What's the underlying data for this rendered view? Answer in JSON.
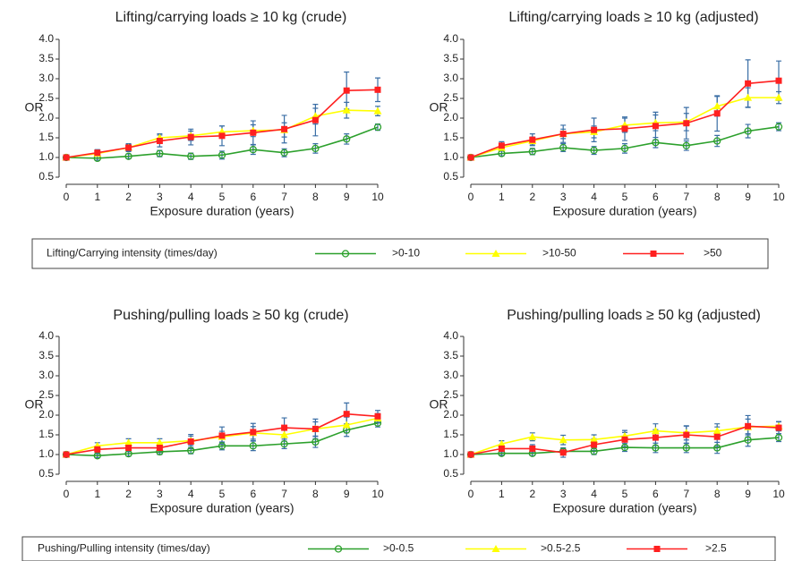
{
  "chart_data": [
    {
      "type": "line",
      "title": "Lifting/carrying loads ≥ 10 kg (crude)",
      "ylabel": "OR",
      "xlabel": "Exposure duration (years)",
      "legend_title": "Lifting/Carrying intensity (times/day)",
      "x": [
        0,
        1,
        2,
        3,
        4,
        5,
        6,
        7,
        8,
        9,
        10
      ],
      "xlim": [
        0,
        10
      ],
      "xticks": [
        0,
        1,
        2,
        3,
        4,
        5,
        6,
        7,
        8,
        9,
        10
      ],
      "ylim": [
        0.5,
        4.0
      ],
      "yticks": [
        {
          "value": 0.5,
          "label": "0.5"
        },
        {
          "value": 1,
          "label": "1.0"
        },
        {
          "value": 1.5,
          "label": "1.5"
        },
        {
          "value": 2,
          "label": "2.0"
        },
        {
          "value": 2.5,
          "label": "2.5"
        },
        {
          "value": 3,
          "label": "3.0"
        },
        {
          "value": 3.5,
          "label": "3.5"
        },
        {
          "value": 4,
          "label": "4.0"
        }
      ],
      "series": [
        {
          "name": ">0-10",
          "color": "#2ca02c",
          "marker": "circle",
          "values": [
            1.0,
            0.98,
            1.03,
            1.1,
            1.03,
            1.06,
            1.2,
            1.12,
            1.23,
            1.47,
            1.77
          ],
          "errors": [
            0,
            0.05,
            0.06,
            0.08,
            0.08,
            0.1,
            0.12,
            0.1,
            0.12,
            0.13,
            0.08
          ]
        },
        {
          "name": ">10-50",
          "color": "#ffff00",
          "marker": "triangle",
          "values": [
            1.0,
            1.1,
            1.25,
            1.5,
            1.55,
            1.65,
            1.68,
            1.7,
            2.05,
            2.2,
            2.18
          ],
          "errors": [
            0,
            0.06,
            0.08,
            0.1,
            0.12,
            0.15,
            0.15,
            0.18,
            0.2,
            0.2,
            0.12
          ]
        },
        {
          "name": ">50",
          "color": "#ff2020",
          "marker": "square",
          "values": [
            1.0,
            1.12,
            1.25,
            1.42,
            1.52,
            1.55,
            1.63,
            1.72,
            1.95,
            2.7,
            2.72
          ],
          "errors": [
            0,
            0.08,
            0.1,
            0.15,
            0.2,
            0.25,
            0.3,
            0.35,
            0.4,
            0.47,
            0.3
          ]
        }
      ]
    },
    {
      "type": "line",
      "title": "Lifting/carrying loads ≥ 10 kg (adjusted)",
      "ylabel": "OR",
      "xlabel": "Exposure duration (years)",
      "x": [
        0,
        1,
        2,
        3,
        4,
        5,
        6,
        7,
        8,
        9,
        10
      ],
      "xlim": [
        0,
        10
      ],
      "xticks": [
        0,
        1,
        2,
        3,
        4,
        5,
        6,
        7,
        8,
        9,
        10
      ],
      "ylim": [
        0.5,
        4.0
      ],
      "yticks": [
        {
          "value": 0.5,
          "label": "0.5"
        },
        {
          "value": 1,
          "label": "1.0"
        },
        {
          "value": 1.5,
          "label": "1.5"
        },
        {
          "value": 2,
          "label": "2.0"
        },
        {
          "value": 2.5,
          "label": "2.5"
        },
        {
          "value": 3,
          "label": "3.0"
        },
        {
          "value": 3.5,
          "label": "3.5"
        },
        {
          "value": 4,
          "label": "4.0"
        }
      ],
      "series": [
        {
          "color": "#2ca02c",
          "marker": "circle",
          "values": [
            1.0,
            1.1,
            1.15,
            1.25,
            1.18,
            1.23,
            1.38,
            1.3,
            1.42,
            1.67,
            1.78
          ],
          "errors": [
            0,
            0.06,
            0.08,
            0.1,
            0.1,
            0.12,
            0.13,
            0.12,
            0.14,
            0.17,
            0.1
          ]
        },
        {
          "color": "#ffff00",
          "marker": "triangle",
          "values": [
            1.0,
            1.25,
            1.42,
            1.6,
            1.65,
            1.82,
            1.88,
            1.9,
            2.3,
            2.52,
            2.52
          ],
          "errors": [
            0,
            0.08,
            0.1,
            0.12,
            0.15,
            0.18,
            0.2,
            0.22,
            0.25,
            0.25,
            0.15
          ]
        },
        {
          "color": "#ff2020",
          "marker": "square",
          "values": [
            1.0,
            1.3,
            1.45,
            1.6,
            1.7,
            1.73,
            1.8,
            1.87,
            2.12,
            2.88,
            2.95
          ],
          "errors": [
            0,
            0.1,
            0.15,
            0.22,
            0.3,
            0.3,
            0.35,
            0.4,
            0.45,
            0.6,
            0.5
          ]
        }
      ]
    },
    {
      "type": "line",
      "title": "Pushing/pulling loads ≥ 50 kg (crude)",
      "ylabel": "OR",
      "xlabel": "Exposure duration (years)",
      "legend_title": "Pushing/Pulling intensity (times/day)",
      "x": [
        0,
        1,
        2,
        3,
        4,
        5,
        6,
        7,
        8,
        9,
        10
      ],
      "xlim": [
        0,
        10
      ],
      "xticks": [
        0,
        1,
        2,
        3,
        4,
        5,
        6,
        7,
        8,
        9,
        10
      ],
      "ylim": [
        0.5,
        4.0
      ],
      "yticks": [
        {
          "value": 0.5,
          "label": "0.5"
        },
        {
          "value": 1,
          "label": "1.0"
        },
        {
          "value": 1.5,
          "label": "1.5"
        },
        {
          "value": 2,
          "label": "2.0"
        },
        {
          "value": 2.5,
          "label": "2.5"
        },
        {
          "value": 3,
          "label": "3.0"
        },
        {
          "value": 3.5,
          "label": "3.5"
        },
        {
          "value": 4,
          "label": "4.0"
        }
      ],
      "series": [
        {
          "name": ">0-0.5",
          "color": "#2ca02c",
          "marker": "circle",
          "values": [
            1.0,
            0.97,
            1.02,
            1.07,
            1.1,
            1.22,
            1.22,
            1.27,
            1.32,
            1.62,
            1.8
          ],
          "errors": [
            0,
            0.05,
            0.06,
            0.07,
            0.08,
            0.1,
            0.12,
            0.12,
            0.14,
            0.16,
            0.1
          ]
        },
        {
          "name": ">0.5-2.5",
          "color": "#ffff00",
          "marker": "triangle",
          "values": [
            1.0,
            1.22,
            1.3,
            1.3,
            1.35,
            1.45,
            1.55,
            1.5,
            1.65,
            1.75,
            1.92
          ],
          "errors": [
            0,
            0.08,
            0.1,
            0.1,
            0.12,
            0.14,
            0.16,
            0.16,
            0.18,
            0.2,
            0.12
          ]
        },
        {
          "name": ">2.5",
          "color": "#ff2020",
          "marker": "square",
          "values": [
            1.0,
            1.13,
            1.17,
            1.17,
            1.33,
            1.48,
            1.57,
            1.68,
            1.65,
            2.03,
            1.97
          ],
          "errors": [
            0,
            0.08,
            0.1,
            0.12,
            0.18,
            0.22,
            0.22,
            0.25,
            0.25,
            0.28,
            0.15
          ]
        }
      ]
    },
    {
      "type": "line",
      "title": "Pushing/pulling loads ≥ 50 kg (adjusted)",
      "ylabel": "OR",
      "xlabel": "Exposure duration (years)",
      "x": [
        0,
        1,
        2,
        3,
        4,
        5,
        6,
        7,
        8,
        9,
        10
      ],
      "xlim": [
        0,
        10
      ],
      "xticks": [
        0,
        1,
        2,
        3,
        4,
        5,
        6,
        7,
        8,
        9,
        10
      ],
      "ylim": [
        0.5,
        4.0
      ],
      "yticks": [
        {
          "value": 0.5,
          "label": "0.5"
        },
        {
          "value": 1,
          "label": "1.0"
        },
        {
          "value": 1.5,
          "label": "1.5"
        },
        {
          "value": 2,
          "label": "2.0"
        },
        {
          "value": 2.5,
          "label": "2.5"
        },
        {
          "value": 3,
          "label": "3.0"
        },
        {
          "value": 3.5,
          "label": "3.5"
        },
        {
          "value": 4,
          "label": "4.0"
        }
      ],
      "series": [
        {
          "color": "#2ca02c",
          "marker": "circle",
          "values": [
            1.0,
            1.03,
            1.03,
            1.08,
            1.08,
            1.18,
            1.17,
            1.17,
            1.17,
            1.37,
            1.43
          ],
          "errors": [
            0,
            0.05,
            0.06,
            0.07,
            0.08,
            0.1,
            0.12,
            0.12,
            0.14,
            0.16,
            0.1
          ]
        },
        {
          "color": "#ffff00",
          "marker": "triangle",
          "values": [
            1.0,
            1.27,
            1.45,
            1.37,
            1.38,
            1.47,
            1.6,
            1.55,
            1.6,
            1.7,
            1.72
          ],
          "errors": [
            0,
            0.08,
            0.1,
            0.12,
            0.12,
            0.14,
            0.18,
            0.18,
            0.18,
            0.2,
            0.12
          ]
        },
        {
          "color": "#ff2020",
          "marker": "square",
          "values": [
            1.0,
            1.15,
            1.15,
            1.05,
            1.25,
            1.38,
            1.43,
            1.5,
            1.45,
            1.72,
            1.68
          ],
          "errors": [
            0,
            0.08,
            0.1,
            0.12,
            0.15,
            0.18,
            0.2,
            0.22,
            0.25,
            0.27,
            0.15
          ]
        }
      ]
    }
  ]
}
